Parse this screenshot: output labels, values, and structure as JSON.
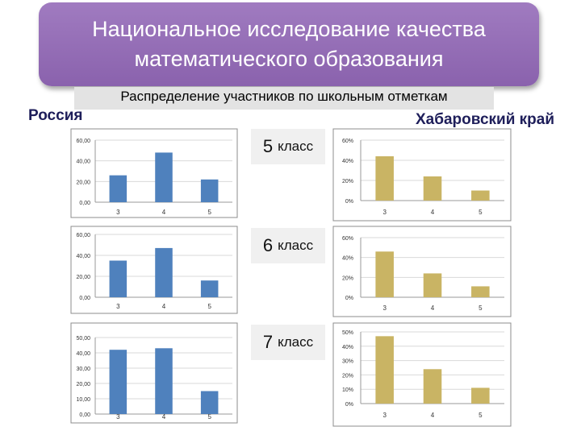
{
  "header": {
    "title": "Национальное исследование качества математического образования",
    "subtitle": "Распределение участников по школьным отметкам"
  },
  "regions": {
    "left": "Россия",
    "right": "Хабаровский край"
  },
  "colors": {
    "russia_bar": "#4f81bd",
    "khabarovsk_bar": "#c9b464",
    "banner": "#9570b8"
  },
  "grades": [
    {
      "label": "5",
      "word": "класс"
    },
    {
      "label": "6",
      "word": "класс"
    },
    {
      "label": "7",
      "word": "класс"
    }
  ],
  "chart_data": [
    {
      "type": "bar",
      "region": "Россия",
      "grade": "5 класс",
      "categories": [
        "3",
        "4",
        "5"
      ],
      "values": [
        26,
        48,
        22
      ],
      "yticks": [
        "0,00",
        "20,00",
        "40,00",
        "60,00"
      ],
      "ylim": [
        0,
        60
      ]
    },
    {
      "type": "bar",
      "region": "Хабаровский край",
      "grade": "5 класс",
      "categories": [
        "3",
        "4",
        "5"
      ],
      "values": [
        44,
        24,
        10
      ],
      "yticks": [
        "0%",
        "20%",
        "40%",
        "60%"
      ],
      "ylim": [
        0,
        60
      ]
    },
    {
      "type": "bar",
      "region": "Россия",
      "grade": "6 класс",
      "categories": [
        "3",
        "4",
        "5"
      ],
      "values": [
        35,
        47,
        16
      ],
      "yticks": [
        "0,00",
        "20,00",
        "40,00",
        "60,00"
      ],
      "ylim": [
        0,
        60
      ]
    },
    {
      "type": "bar",
      "region": "Хабаровский край",
      "grade": "6 класс",
      "categories": [
        "3",
        "4",
        "5"
      ],
      "values": [
        46,
        24,
        11
      ],
      "yticks": [
        "0%",
        "20%",
        "40%",
        "60%"
      ],
      "ylim": [
        0,
        60
      ]
    },
    {
      "type": "bar",
      "region": "Россия",
      "grade": "7 класс",
      "categories": [
        "3",
        "4",
        "5"
      ],
      "values": [
        42,
        43,
        15
      ],
      "yticks": [
        "0,00",
        "10,00",
        "20,00",
        "30,00",
        "40,00",
        "50,00"
      ],
      "ylim": [
        0,
        50
      ]
    },
    {
      "type": "bar",
      "region": "Хабаровский край",
      "grade": "7 класс",
      "categories": [
        "3",
        "4",
        "5"
      ],
      "values": [
        47,
        24,
        11
      ],
      "yticks": [
        "0%",
        "10%",
        "20%",
        "30%",
        "40%",
        "50%"
      ],
      "ylim": [
        0,
        50
      ]
    }
  ]
}
